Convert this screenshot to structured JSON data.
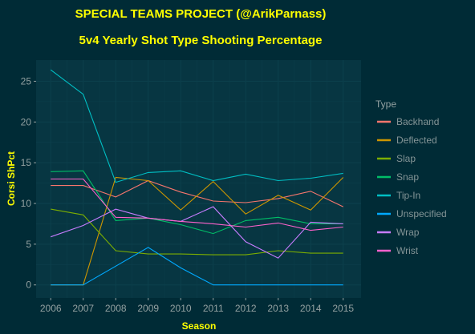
{
  "colors": {
    "background": "#002b36",
    "panel": "#073642",
    "grid": "#0c3f4b",
    "title": "#ffff00",
    "text": "#93a1a1"
  },
  "chart_data": {
    "type": "line",
    "title": "SPECIAL TEAMS PROJECT (@ArikParnass)",
    "subtitle": "5v4 Yearly Shot Type Shooting Percentage",
    "xlabel": "Season",
    "ylabel": "Corsi ShPct",
    "x": [
      2006,
      2007,
      2008,
      2009,
      2010,
      2011,
      2012,
      2013,
      2014,
      2015
    ],
    "x_tick_labels": [
      "2006",
      "2007",
      "2008",
      "2009",
      "2010",
      "2011",
      "2012",
      "2013",
      "2014",
      "2015"
    ],
    "xlim": [
      2005.55,
      2015.55
    ],
    "ylim": [
      -1.6,
      27.6
    ],
    "y_ticks": [
      0,
      5,
      10,
      15,
      20,
      25
    ],
    "y_tick_labels": [
      "0",
      "5",
      "10",
      "15",
      "20",
      "25"
    ],
    "grid": true,
    "legend_title": "Type",
    "legend_position": "right",
    "series": [
      {
        "name": "Backhand",
        "color": "#f8766d",
        "values": [
          12.2,
          12.2,
          10.8,
          12.8,
          11.4,
          10.3,
          10.1,
          10.6,
          11.5,
          9.6
        ]
      },
      {
        "name": "Deflected",
        "color": "#cd9600",
        "values": [
          0.0,
          0.0,
          13.2,
          12.8,
          9.2,
          12.7,
          8.7,
          11.0,
          9.2,
          13.2
        ]
      },
      {
        "name": "Slap",
        "color": "#7cae00",
        "values": [
          9.3,
          8.6,
          4.2,
          3.8,
          3.8,
          3.7,
          3.7,
          4.2,
          3.9,
          3.9
        ]
      },
      {
        "name": "Snap",
        "color": "#00be67",
        "values": [
          13.9,
          14.0,
          7.9,
          8.2,
          7.4,
          6.3,
          7.9,
          8.3,
          7.5,
          7.5
        ]
      },
      {
        "name": "Tip-In",
        "color": "#00bfc4",
        "values": [
          26.4,
          23.4,
          12.6,
          13.8,
          14.0,
          12.8,
          13.6,
          12.8,
          13.1,
          13.7
        ]
      },
      {
        "name": "Unspecified",
        "color": "#00a9ff",
        "values": [
          0.0,
          0.0,
          2.3,
          4.6,
          2.1,
          0.0,
          0.0,
          0.0,
          0.0,
          0.0
        ]
      },
      {
        "name": "Wrap",
        "color": "#c77cff",
        "values": [
          5.9,
          7.3,
          9.3,
          8.2,
          7.8,
          9.6,
          5.3,
          3.3,
          7.7,
          7.5
        ]
      },
      {
        "name": "Wrist",
        "color": "#ff61cc",
        "values": [
          13.0,
          13.0,
          8.3,
          8.2,
          7.8,
          7.5,
          7.1,
          7.6,
          6.7,
          7.1
        ]
      }
    ]
  }
}
